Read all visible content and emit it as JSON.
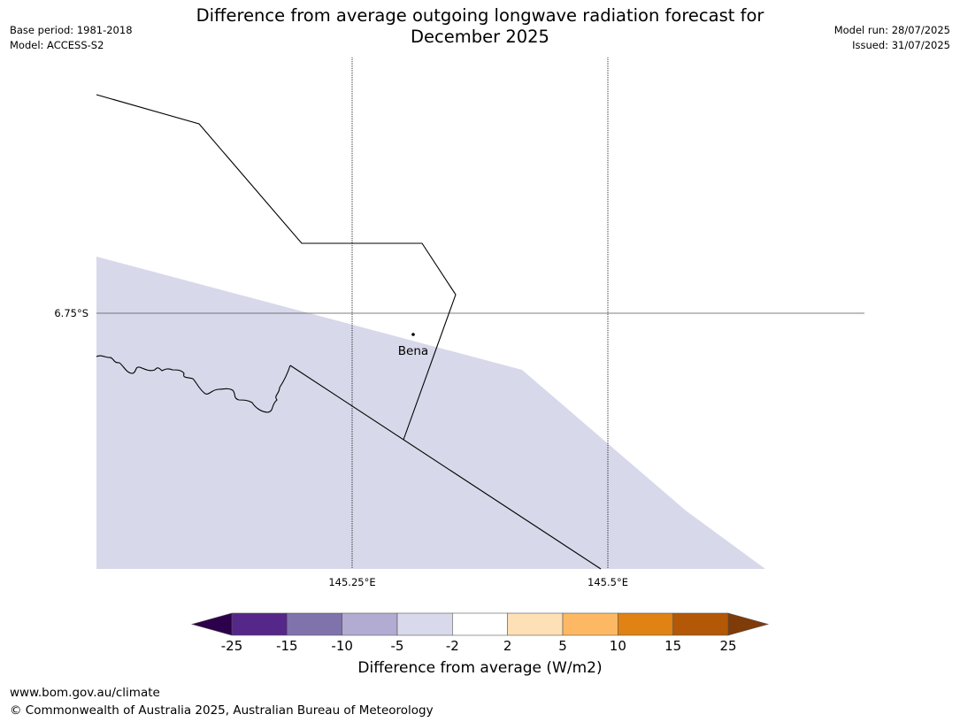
{
  "header": {
    "title_line1": "Difference from average outgoing longwave radiation forecast for",
    "title_line2": "December 2025",
    "base_period": "Base period: 1981-2018",
    "model": "Model: ACCESS-S2",
    "model_run": "Model run: 28/07/2025",
    "issued": "Issued: 31/07/2025"
  },
  "map": {
    "lat_labels": [
      "6.75°S"
    ],
    "lon_labels": [
      "145.25°E",
      "145.5°E"
    ],
    "place": {
      "name": "Bena"
    },
    "fill_category": "-5 to -2",
    "fill_color": "#d7d8ea"
  },
  "colorbar": {
    "title": "Difference from average (W/m2)",
    "ticks": [
      "-25",
      "-15",
      "-10",
      "-5",
      "-2",
      "2",
      "5",
      "10",
      "15",
      "25"
    ],
    "colors": [
      "#542788",
      "#8073ac",
      "#b2abd2",
      "#d8daeb",
      "#ffffff",
      "#fee0b6",
      "#fdb863",
      "#e08214",
      "#b35806"
    ],
    "under_color": "#2d004b",
    "over_color": "#7f3b08"
  },
  "footer": {
    "url": "www.bom.gov.au/climate",
    "copyright": "© Commonwealth of Australia 2025, Australian Bureau of Meteorology"
  }
}
